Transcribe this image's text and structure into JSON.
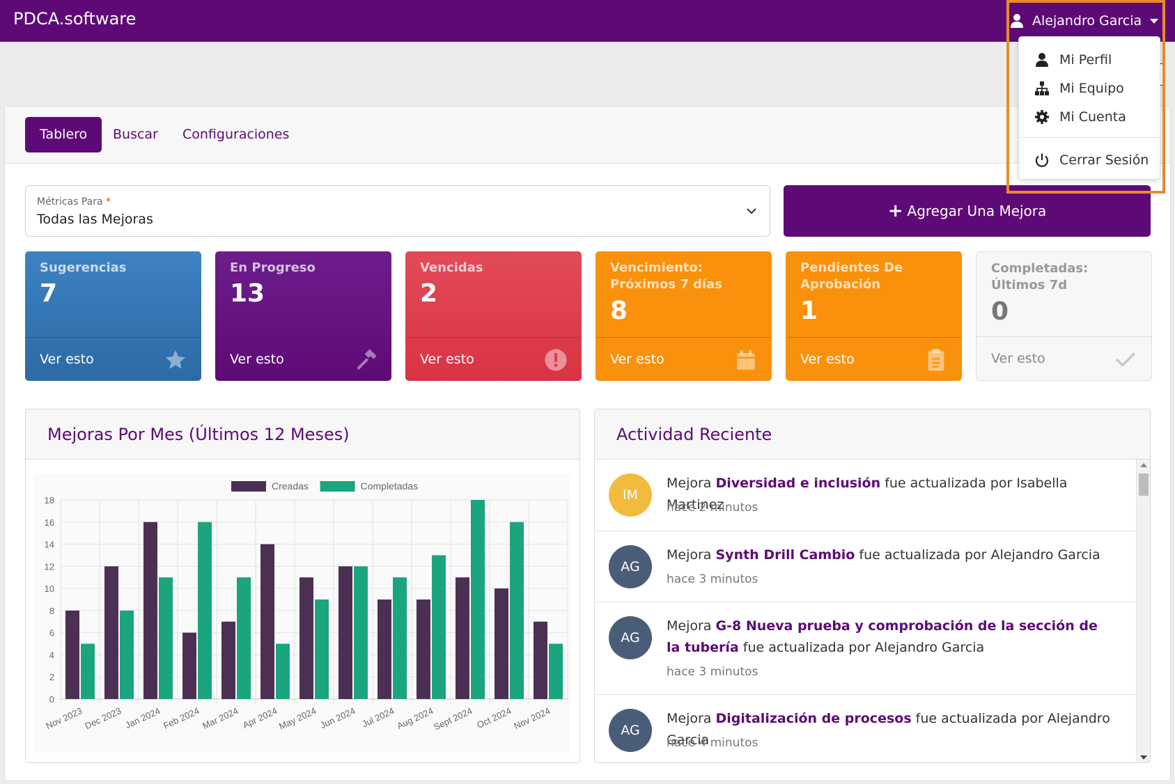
{
  "app": {
    "brand": "PDCA.software",
    "user_name": "Alejandro Garcia"
  },
  "user_dropdown": {
    "items": [
      {
        "label": "Mi Perfil",
        "icon": "user-icon"
      },
      {
        "label": "Mi Equipo",
        "icon": "org-chart-icon"
      },
      {
        "label": "Mi Cuenta",
        "icon": "gear-icon"
      },
      {
        "label": "Cerrar Sesión",
        "icon": "power-icon"
      }
    ]
  },
  "tabs": [
    {
      "label": "Tablero",
      "active": true
    },
    {
      "label": "Buscar",
      "active": false
    },
    {
      "label": "Configuraciones",
      "active": false
    }
  ],
  "metrics_select": {
    "label": "Métricas Para",
    "required_mark": "*",
    "value": "Todas las Mejoras"
  },
  "add_button": {
    "label": "Agregar Una Mejora"
  },
  "cards": [
    {
      "title": "Sugerencias",
      "value": "7",
      "link": "Ver esto",
      "icon": "star-icon",
      "color": "#3477b6"
    },
    {
      "title": "En Progreso",
      "value": "13",
      "link": "Ver esto",
      "icon": "hammer-icon",
      "color": "#5e0a76"
    },
    {
      "title": "Vencidas",
      "value": "2",
      "link": "Ver esto",
      "icon": "alert-circle-icon",
      "color": "#dd3c4c"
    },
    {
      "title": "Vencimiento: Próximos 7 días",
      "value": "8",
      "link": "Ver esto",
      "icon": "calendar-icon",
      "color": "#f9910d"
    },
    {
      "title": "Pendientes De Aprobación",
      "value": "1",
      "link": "Ver esto",
      "icon": "clipboard-icon",
      "color": "#f9910d"
    },
    {
      "title": "Completadas: Últimos 7d",
      "value": "0",
      "link": "Ver esto",
      "icon": "check-icon",
      "color": "#f7f7f7"
    }
  ],
  "chart_panel": {
    "title": "Mejoras Por Mes (Últimos 12 Meses)"
  },
  "chart_data": {
    "type": "bar",
    "categories": [
      "Nov 2023",
      "Dec 2023",
      "Jan 2024",
      "Feb 2024",
      "Mar 2024",
      "Apr 2024",
      "May 2024",
      "Jun 2024",
      "Jul 2024",
      "Aug 2024",
      "Sept 2024",
      "Oct 2024",
      "Nov 2024"
    ],
    "series": [
      {
        "name": "Creadas",
        "color": "#4b3054",
        "values": [
          8,
          12,
          16,
          6,
          7,
          14,
          11,
          12,
          9,
          9,
          11,
          10,
          7
        ]
      },
      {
        "name": "Completadas",
        "color": "#1aa57f",
        "values": [
          5,
          8,
          11,
          16,
          11,
          5,
          9,
          12,
          11,
          13,
          18,
          16,
          5
        ]
      }
    ],
    "ylim": [
      0,
      18
    ],
    "yticks": [
      0,
      2,
      4,
      6,
      8,
      10,
      12,
      14,
      16,
      18
    ],
    "grid": true,
    "legend": "top-center"
  },
  "activity_panel": {
    "title": "Actividad Reciente",
    "items": [
      {
        "initials": "IM",
        "avatar_color": "#f3bb3d",
        "prefix": "Mejora",
        "improvement": "Diversidad e inclusión",
        "suffix": "fue actualizada por Isabella Martinez",
        "time": "hace 2 minutos"
      },
      {
        "initials": "AG",
        "avatar_color": "#4a5d78",
        "prefix": "Mejora",
        "improvement": "Synth Drill Cambio",
        "suffix": "fue actualizada por Alejandro Garcia",
        "time": "hace 3 minutos"
      },
      {
        "initials": "AG",
        "avatar_color": "#4a5d78",
        "prefix": "Mejora",
        "improvement": "G-8 Nueva prueba y comprobación de la sección de la tubería",
        "suffix": "fue actualizada por Alejandro Garcia",
        "time": "hace 3 minutos"
      },
      {
        "initials": "AG",
        "avatar_color": "#4a5d78",
        "prefix": "Mejora",
        "improvement": "Digitalización de procesos",
        "suffix": "fue actualizada por Alejandro Garcia",
        "time": "hace 4 minutos"
      }
    ]
  }
}
